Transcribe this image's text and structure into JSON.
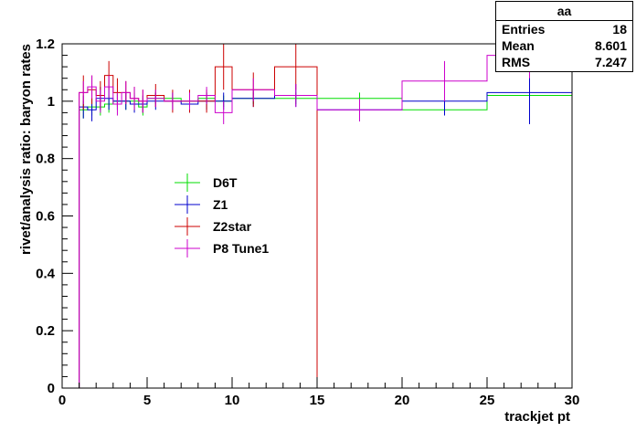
{
  "stats": {
    "title": "aa",
    "rows": [
      {
        "label": "Entries",
        "value": "18"
      },
      {
        "label": "Mean",
        "value": "8.601"
      },
      {
        "label": "RMS",
        "value": "7.247"
      }
    ]
  },
  "colors": {
    "D6T": "#00dd00",
    "Z1": "#0000cc",
    "Z2star": "#cc0000",
    "P8 Tune1": "#cc00cc"
  },
  "chart_data": {
    "type": "line",
    "title": "",
    "xlabel": "trackjet pt",
    "ylabel": "rivet/analysis ratio: baryon rates",
    "xlim": [
      0,
      30
    ],
    "ylim": [
      0,
      1.2
    ],
    "xticks": [
      0,
      5,
      10,
      15,
      20,
      25,
      30
    ],
    "yticks": [
      0,
      0.2,
      0.4,
      0.6,
      0.8,
      1,
      1.2
    ],
    "ytick_labels": [
      "0",
      "0.2",
      "0.4",
      "0.6",
      "0.8",
      "1",
      "1.2"
    ],
    "legend": {
      "position": "center-left"
    },
    "bin_edges": [
      1,
      1.5,
      2,
      2.5,
      3,
      3.5,
      4,
      4.5,
      5,
      6,
      7,
      8,
      9,
      10,
      12.5,
      15,
      20,
      25,
      30
    ],
    "series": [
      {
        "name": "D6T",
        "values": [
          0.97,
          0.98,
          0.98,
          0.99,
          1.0,
          1.0,
          1.0,
          0.98,
          1.01,
          1.01,
          1.0,
          1.01,
          1.0,
          1.01,
          1.01,
          1.01,
          0.97,
          1.02
        ],
        "errors": [
          0.03,
          0.03,
          0.03,
          0.03,
          0.03,
          0.03,
          0.03,
          0.03,
          0.02,
          0.02,
          0.02,
          0.02,
          0.02,
          0.02,
          0.02,
          0.02,
          0.02,
          0.02
        ]
      },
      {
        "name": "Z1",
        "values": [
          0.98,
          0.97,
          1.01,
          1.01,
          1.0,
          1.0,
          0.99,
          0.99,
          1.0,
          1.0,
          0.99,
          1.0,
          1.0,
          1.01,
          1.02,
          0.97,
          1.0,
          1.03
        ],
        "errors": [
          0.04,
          0.04,
          0.04,
          0.04,
          0.03,
          0.03,
          0.03,
          0.03,
          0.03,
          0.03,
          0.03,
          0.03,
          0.03,
          0.03,
          0.04,
          0.04,
          0.05,
          0.11
        ]
      },
      {
        "name": "Z2star",
        "values": [
          1.03,
          1.04,
          1.02,
          1.09,
          1.03,
          1.03,
          1.01,
          1.0,
          1.02,
          1.0,
          1.0,
          1.0,
          1.12,
          1.04,
          1.12,
          0.0,
          0.0,
          0.0
        ],
        "errors": [
          0.06,
          0.05,
          0.05,
          0.05,
          0.05,
          0.04,
          0.04,
          0.04,
          0.04,
          0.04,
          0.04,
          0.04,
          0.08,
          0.06,
          0.08,
          0.0,
          0.0,
          0.0
        ]
      },
      {
        "name": "P8 Tune1",
        "values": [
          1.03,
          1.05,
          1.0,
          1.05,
          0.99,
          1.03,
          1.01,
          1.0,
          1.01,
          1.0,
          1.0,
          1.02,
          0.96,
          1.04,
          1.02,
          0.97,
          1.07,
          1.16
        ],
        "errors": [
          0.04,
          0.04,
          0.04,
          0.04,
          0.04,
          0.04,
          0.04,
          0.04,
          0.03,
          0.03,
          0.03,
          0.03,
          0.04,
          0.04,
          0.04,
          0.04,
          0.07,
          0.08
        ]
      }
    ]
  }
}
